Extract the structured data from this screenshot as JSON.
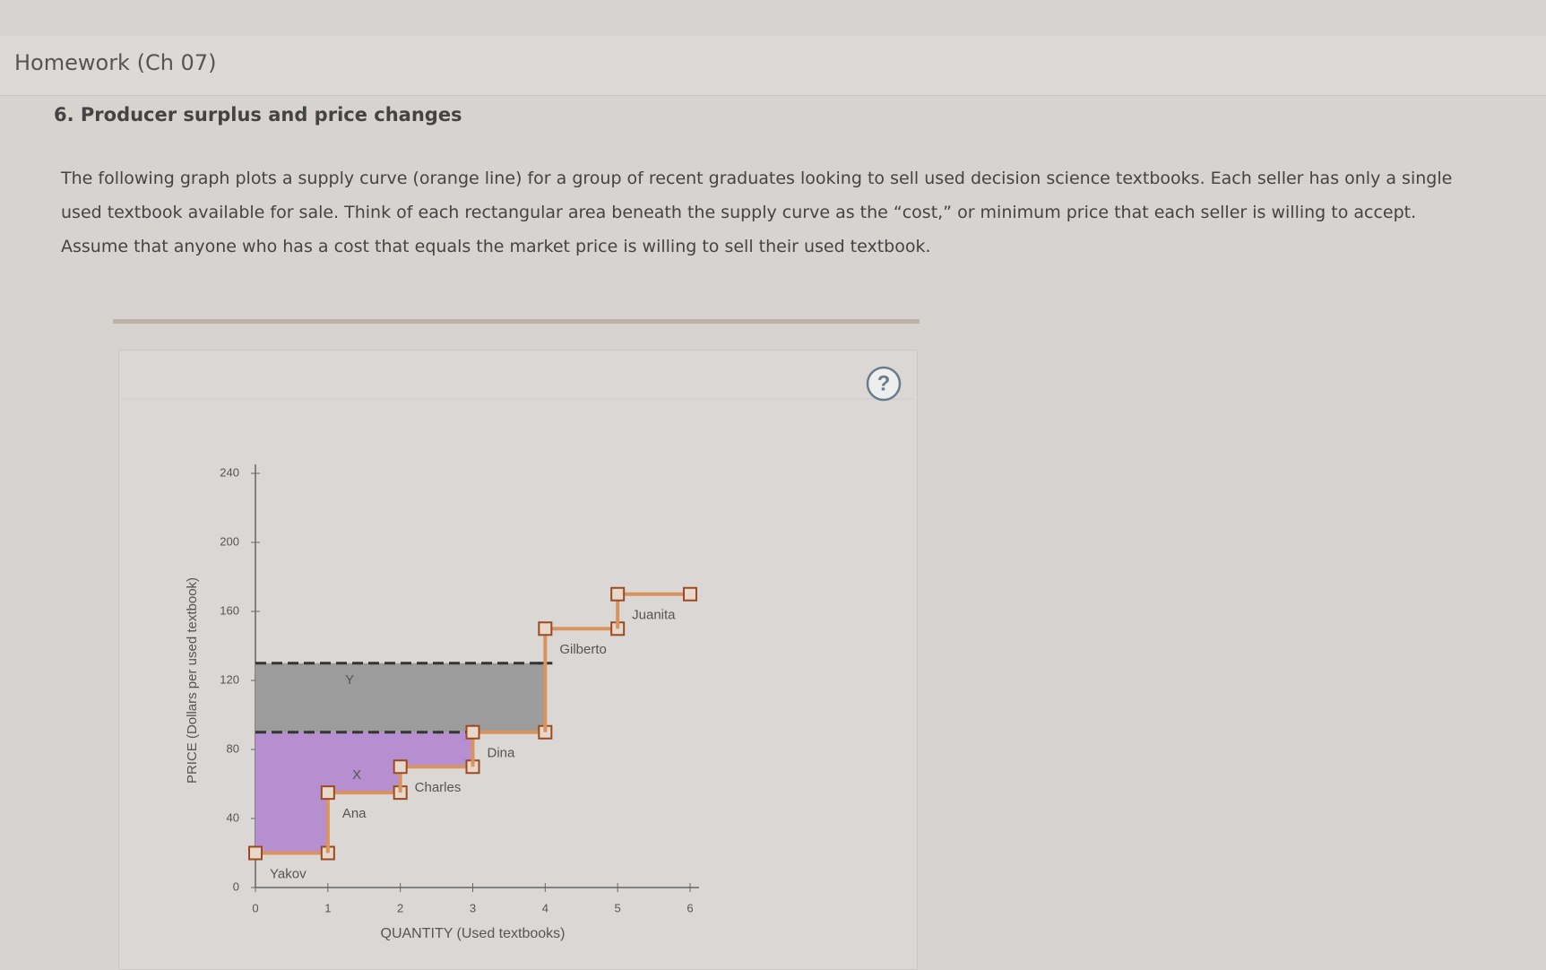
{
  "header": {
    "title": "Homework (Ch 07)"
  },
  "question": {
    "title": "6. Producer surplus and price changes",
    "text": "The following graph plots a supply curve (orange line) for a group of recent graduates looking to sell used decision science textbooks. Each seller has only a single used textbook available for sale. Think of each rectangular area beneath the supply curve as the “cost,” or minimum price that each seller is willing to accept. Assume that anyone who has a cost that equals the market price is willing to sell their used textbook."
  },
  "help": "?",
  "chart_data": {
    "type": "step",
    "x_label": "QUANTITY (Used textbooks)",
    "y_label": "PRICE (Dollars per used textbook)",
    "xlim": [
      0,
      6
    ],
    "xticks": [
      0,
      1,
      2,
      3,
      4,
      5,
      6
    ],
    "ylim": [
      0,
      240
    ],
    "yticks": [
      0,
      40,
      80,
      120,
      160,
      200,
      240
    ],
    "sellers": {
      "names": [
        "Yakov",
        "Ana",
        "Charles",
        "Dina",
        "Gilberto",
        "Juanita"
      ],
      "values": [
        20,
        55,
        70,
        90,
        150,
        170
      ],
      "color": "#d9935e"
    },
    "price_lines": [
      90,
      130
    ],
    "area_labels": [
      "X",
      "Y"
    ],
    "area_colors": [
      "#b58fcf",
      "#9c9c9c"
    ]
  }
}
